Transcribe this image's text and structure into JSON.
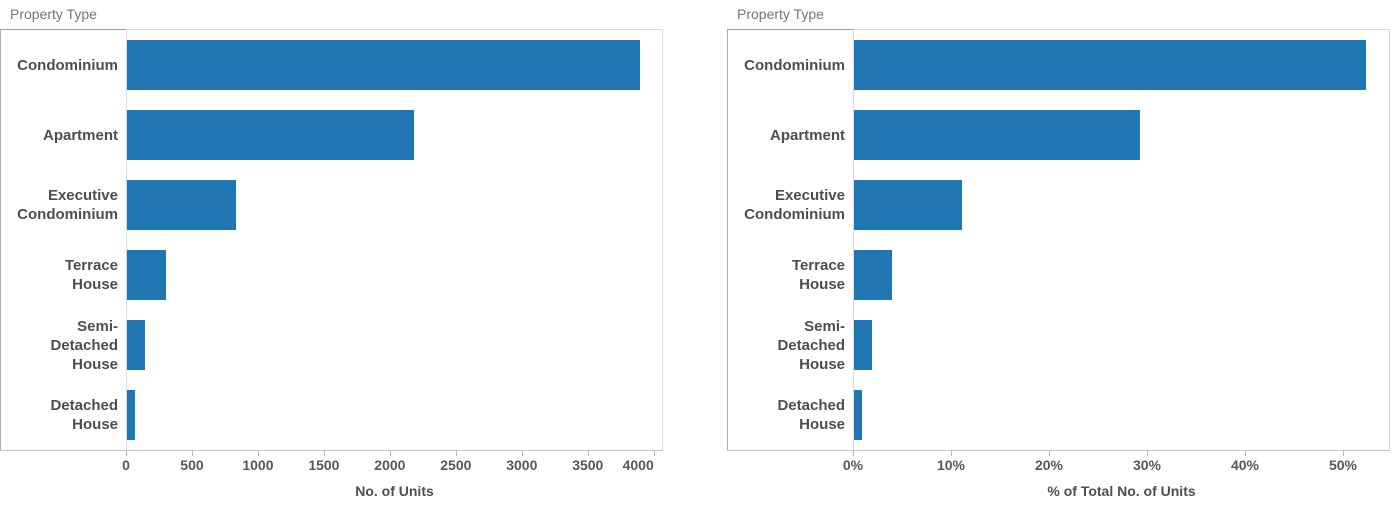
{
  "colors": {
    "bar": "#2077b4",
    "category-text": "#4e4e4e",
    "tick-text": "#575757",
    "header-text": "#757575",
    "axis-title-text": "#4e4e4e",
    "zero-line": "#d9d9d9",
    "plot-border": "#d9d9d9",
    "header-rule-dark": "#9e9e9e",
    "axis-line": "#c4c4c4",
    "tick-mark": "#b5b5b5",
    "plot-left-border": "#b0b0b0"
  },
  "chart_data": [
    {
      "type": "bar",
      "orientation": "horizontal",
      "title": "Property Type",
      "categories": [
        "Condominium",
        "Apartment",
        "Executive Condominium",
        "Terrace House",
        "Semi-Detached House",
        "Detached House"
      ],
      "category_label_lines": [
        [
          "Condominium"
        ],
        [
          "Apartment"
        ],
        [
          "Executive",
          "Condominium"
        ],
        [
          "Terrace",
          "House"
        ],
        [
          "Semi-",
          "Detached",
          "House"
        ],
        [
          "Detached",
          "House"
        ]
      ],
      "values": [
        3900,
        2180,
        830,
        300,
        140,
        60
      ],
      "xlabel": "No. of Units",
      "xlim": [
        0,
        4070
      ],
      "xticks": [
        0,
        500,
        1000,
        1500,
        2000,
        2500,
        3000,
        3500,
        4000
      ],
      "xtick_labels": [
        "0",
        "500",
        "1000",
        "1500",
        "2000",
        "2500",
        "3000",
        "3500",
        "4000"
      ],
      "grid": "off",
      "legend": "none",
      "bar_color": "#2077b4"
    },
    {
      "type": "bar",
      "orientation": "horizontal",
      "title": "Property Type",
      "categories": [
        "Condominium",
        "Apartment",
        "Executive Condominium",
        "Terrace House",
        "Semi-Detached House",
        "Detached House"
      ],
      "category_label_lines": [
        [
          "Condominium"
        ],
        [
          "Apartment"
        ],
        [
          "Executive",
          "Condominium"
        ],
        [
          "Terrace",
          "House"
        ],
        [
          "Semi-",
          "Detached",
          "House"
        ],
        [
          "Detached",
          "House"
        ]
      ],
      "values": [
        52.4,
        29.3,
        11.1,
        3.9,
        1.8,
        0.8
      ],
      "xlabel": "% of Total No. of Units",
      "xlim": [
        0,
        54.8
      ],
      "xticks": [
        0,
        10,
        20,
        30,
        40,
        50
      ],
      "xtick_labels": [
        "0%",
        "10%",
        "20%",
        "30%",
        "40%",
        "50%"
      ],
      "grid": "off",
      "legend": "none",
      "bar_color": "#2077b4"
    }
  ]
}
